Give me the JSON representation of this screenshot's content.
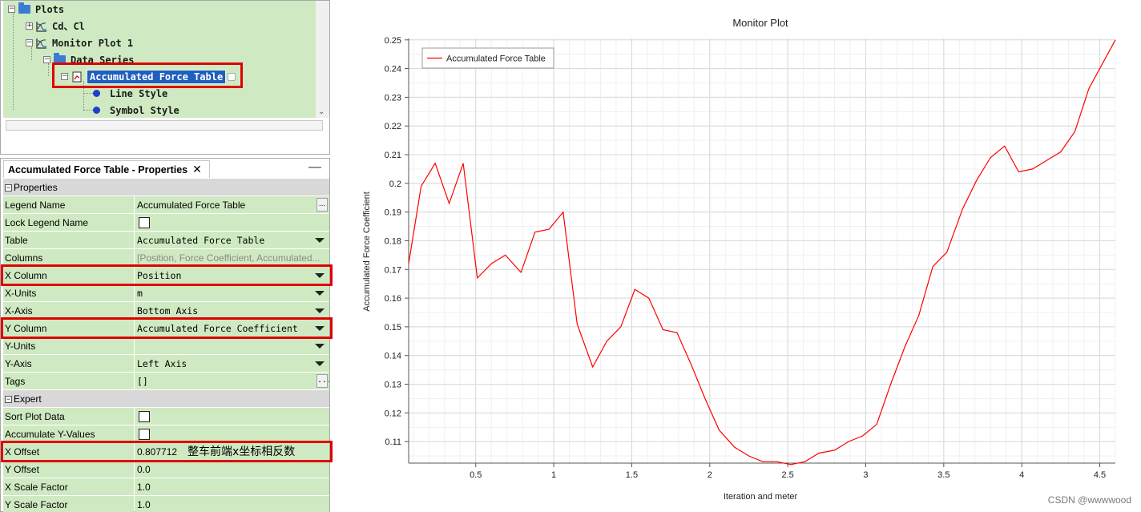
{
  "tree": {
    "items": [
      {
        "label": "Plots",
        "icon": "folder-icon"
      },
      {
        "label": "Cd、Cl",
        "icon": "plot-icon"
      },
      {
        "label": "Monitor Plot 1",
        "icon": "plot-icon"
      },
      {
        "label": "Data Series",
        "icon": "folder-icon"
      },
      {
        "label": "Accumulated Force Table",
        "icon": "table-series-icon",
        "selected": true
      },
      {
        "label": "Line Style",
        "icon": "dot-icon"
      },
      {
        "label": "Symbol Style",
        "icon": "dot-icon"
      }
    ]
  },
  "properties": {
    "tab_title": "Accumulated Force Table - Properties",
    "tab_close": "✕",
    "minimize": "—",
    "sections": {
      "properties": "Properties",
      "expert": "Expert"
    },
    "rows": [
      {
        "key": "Legend Name",
        "value": "Accumulated Force Table"
      },
      {
        "key": "Lock Legend Name",
        "value": ""
      },
      {
        "key": "Table",
        "value": "Accumulated Force Table"
      },
      {
        "key": "Columns",
        "value": "[Position, Force Coefficient, Accumulated..."
      },
      {
        "key": "X Column",
        "value": "Position"
      },
      {
        "key": "X-Units",
        "value": "m"
      },
      {
        "key": "X-Axis",
        "value": "Bottom Axis"
      },
      {
        "key": "Y Column",
        "value": "Accumulated Force Coefficient"
      },
      {
        "key": "Y-Units",
        "value": ""
      },
      {
        "key": "Y-Axis",
        "value": "Left Axis"
      },
      {
        "key": "Tags",
        "value": "[]"
      },
      {
        "key": "Sort Plot Data",
        "value": ""
      },
      {
        "key": "Accumulate Y-Values",
        "value": ""
      },
      {
        "key": "X Offset",
        "value": "0.807712"
      },
      {
        "key": "Y Offset",
        "value": "0.0"
      },
      {
        "key": "X Scale Factor",
        "value": "1.0"
      },
      {
        "key": "Y Scale Factor",
        "value": "1.0"
      }
    ],
    "annotation": "整车前端x坐标相反数",
    "ellipsis": "..."
  },
  "highlight_color": "#e00000",
  "watermark": "CSDN @wwwwood",
  "chart_data": {
    "type": "line",
    "title": "Monitor Plot",
    "xlabel": "Iteration and meter",
    "ylabel": "Accumulated Force Coefficient",
    "xlim": [
      0.07,
      4.6
    ],
    "ylim": [
      0.1025,
      0.2505
    ],
    "xticks": [
      0.5,
      1,
      1.5,
      2,
      2.5,
      3,
      3.5,
      4,
      4.5
    ],
    "xtick_labels": [
      "0.5",
      "1",
      "1.5",
      "2",
      "2.5",
      "3",
      "3.5",
      "4",
      "4.5"
    ],
    "yticks": [
      0.11,
      0.12,
      0.13,
      0.14,
      0.15,
      0.16,
      0.17,
      0.18,
      0.19,
      0.2,
      0.21,
      0.22,
      0.23,
      0.24,
      0.25
    ],
    "ytick_labels": [
      "0.11",
      "0.12",
      "0.13",
      "0.14",
      "0.15",
      "0.16",
      "0.17",
      "0.18",
      "0.19",
      "0.2",
      "0.21",
      "0.22",
      "0.23",
      "0.24",
      "0.25"
    ],
    "grid": true,
    "legend_position": "top-left",
    "series": [
      {
        "name": "Accumulated Force Table",
        "color": "#ff0000",
        "x": [
          0.07,
          0.15,
          0.24,
          0.33,
          0.42,
          0.51,
          0.6,
          0.69,
          0.79,
          0.88,
          0.97,
          1.06,
          1.15,
          1.25,
          1.34,
          1.43,
          1.52,
          1.61,
          1.7,
          1.79,
          1.88,
          1.97,
          2.06,
          2.16,
          2.25,
          2.34,
          2.43,
          2.52,
          2.61,
          2.7,
          2.8,
          2.89,
          2.98,
          3.07,
          3.16,
          3.25,
          3.34,
          3.43,
          3.52,
          3.62,
          3.71,
          3.8,
          3.89,
          3.98,
          4.07,
          4.16,
          4.25,
          4.34,
          4.43,
          4.6
        ],
        "y": [
          0.172,
          0.199,
          0.207,
          0.193,
          0.207,
          0.167,
          0.172,
          0.175,
          0.169,
          0.183,
          0.184,
          0.19,
          0.151,
          0.136,
          0.145,
          0.15,
          0.163,
          0.16,
          0.149,
          0.148,
          0.137,
          0.125,
          0.114,
          0.108,
          0.105,
          0.103,
          0.103,
          0.102,
          0.103,
          0.106,
          0.107,
          0.11,
          0.112,
          0.116,
          0.13,
          0.143,
          0.154,
          0.171,
          0.176,
          0.191,
          0.201,
          0.209,
          0.213,
          0.204,
          0.205,
          0.208,
          0.211,
          0.218,
          0.233,
          0.25
        ]
      }
    ]
  }
}
